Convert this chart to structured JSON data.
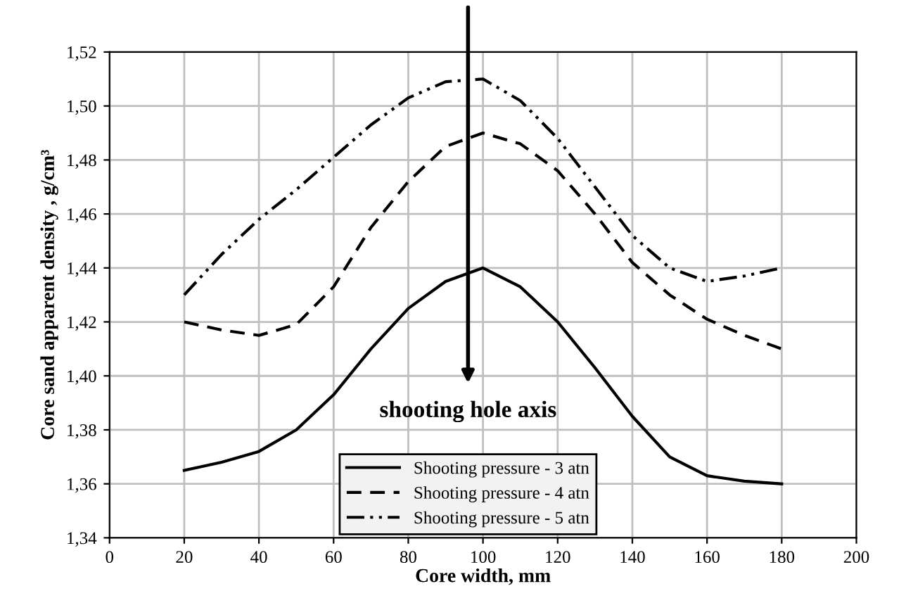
{
  "chart_data": {
    "type": "line",
    "xlabel": "Core width, mm",
    "ylabel": "Core sand apparent density , g/cm³",
    "x": [
      20,
      30,
      40,
      50,
      60,
      70,
      80,
      90,
      100,
      110,
      120,
      130,
      140,
      150,
      160,
      170,
      180
    ],
    "series": [
      {
        "name": "Shooting pressure - 3 atn",
        "color": "#000000",
        "line_style": "solid",
        "values": [
          1.365,
          1.368,
          1.372,
          1.38,
          1.393,
          1.41,
          1.425,
          1.435,
          1.44,
          1.433,
          1.42,
          1.403,
          1.385,
          1.37,
          1.363,
          1.361,
          1.36
        ]
      },
      {
        "name": "Shooting pressure - 4 atn",
        "color": "#000000",
        "line_style": "dashed",
        "values": [
          1.42,
          1.417,
          1.415,
          1.419,
          1.433,
          1.455,
          1.472,
          1.485,
          1.49,
          1.486,
          1.476,
          1.46,
          1.442,
          1.43,
          1.421,
          1.415,
          1.41
        ]
      },
      {
        "name": "Shooting pressure - 5 atn",
        "color": "#000000",
        "line_style": "dashdot",
        "values": [
          1.43,
          1.445,
          1.458,
          1.469,
          1.481,
          1.493,
          1.503,
          1.509,
          1.51,
          1.502,
          1.488,
          1.47,
          1.452,
          1.44,
          1.435,
          1.437,
          1.44
        ]
      }
    ],
    "annotations": [
      "shooting hole axis"
    ],
    "xlim": [
      0,
      200
    ],
    "xticks": [
      0,
      20,
      40,
      60,
      80,
      100,
      120,
      140,
      160,
      180,
      200
    ],
    "ylim": [
      1.34,
      1.52
    ],
    "yticks": [
      {
        "value": 1.34,
        "label": "1,34"
      },
      {
        "value": 1.36,
        "label": "1,36"
      },
      {
        "value": 1.38,
        "label": "1,38"
      },
      {
        "value": 1.4,
        "label": "1,40"
      },
      {
        "value": 1.42,
        "label": "1,42"
      },
      {
        "value": 1.44,
        "label": "1,44"
      },
      {
        "value": 1.46,
        "label": "1,46"
      },
      {
        "value": 1.48,
        "label": "1,48"
      },
      {
        "value": 1.5,
        "label": "1,50"
      },
      {
        "value": 1.52,
        "label": "1,52"
      }
    ],
    "grid": true,
    "legend": "bottom",
    "marker": "none"
  }
}
